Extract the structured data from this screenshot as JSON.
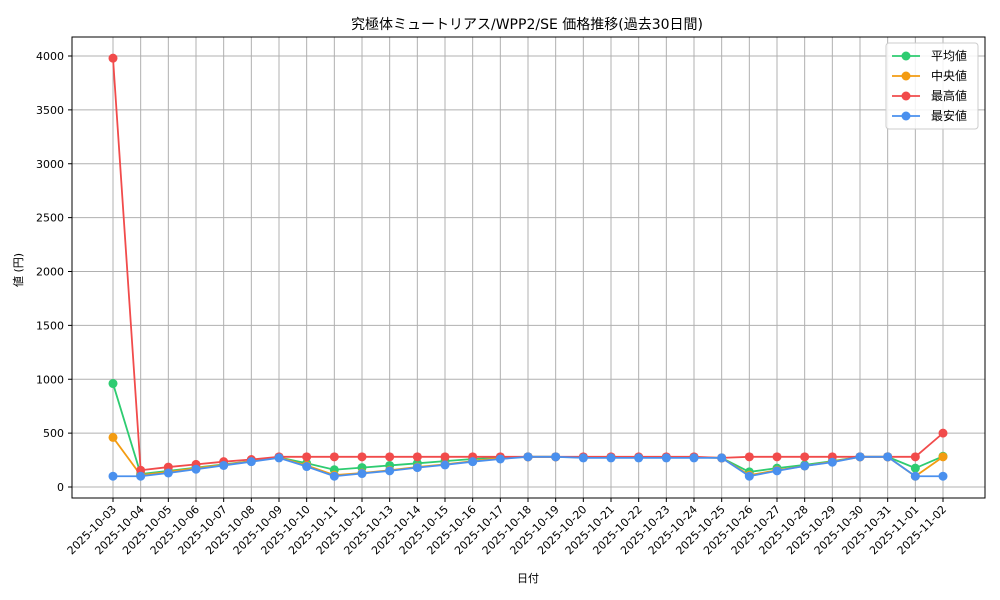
{
  "chart_data": {
    "type": "line",
    "title": "究極体ミュートリアス/WPP2/SE 価格推移(過去30日間)",
    "xlabel": "日付",
    "ylabel": "値 (円)",
    "ylim": [
      -100,
      4180
    ],
    "yticks": [
      0,
      500,
      1000,
      1500,
      2000,
      2500,
      3000,
      3500,
      4000
    ],
    "grid": true,
    "legend_position": "upper right",
    "categories": [
      "2025-10-03",
      "2025-10-04",
      "2025-10-05",
      "2025-10-06",
      "2025-10-07",
      "2025-10-08",
      "2025-10-09",
      "2025-10-10",
      "2025-10-11",
      "2025-10-12",
      "2025-10-13",
      "2025-10-14",
      "2025-10-15",
      "2025-10-16",
      "2025-10-17",
      "2025-10-18",
      "2025-10-19",
      "2025-10-20",
      "2025-10-21",
      "2025-10-22",
      "2025-10-23",
      "2025-10-24",
      "2025-10-25",
      "2025-10-26",
      "2025-10-27",
      "2025-10-28",
      "2025-10-29",
      "2025-10-30",
      "2025-10-31",
      "2025-11-01",
      "2025-11-02"
    ],
    "series": [
      {
        "name": "平均値",
        "color": "#2ecc71",
        "values": [
          960,
          120,
          150,
          180,
          210,
          240,
          275,
          220,
          160,
          180,
          200,
          220,
          240,
          260,
          275,
          280,
          280,
          275,
          275,
          275,
          275,
          275,
          270,
          140,
          175,
          205,
          240,
          280,
          280,
          175,
          285
        ]
      },
      {
        "name": "中央値",
        "color": "#f39c12",
        "values": [
          460,
          110,
          140,
          175,
          205,
          240,
          275,
          200,
          110,
          130,
          155,
          185,
          210,
          240,
          270,
          280,
          280,
          275,
          275,
          275,
          275,
          275,
          270,
          110,
          155,
          195,
          235,
          280,
          280,
          100,
          280
        ]
      },
      {
        "name": "最高値",
        "color": "#f14b4b",
        "values": [
          3980,
          155,
          185,
          210,
          235,
          255,
          280,
          280,
          280,
          280,
          280,
          280,
          280,
          280,
          280,
          280,
          280,
          280,
          280,
          280,
          280,
          280,
          270,
          280,
          280,
          280,
          280,
          280,
          280,
          280,
          500
        ]
      },
      {
        "name": "最安値",
        "color": "#4a90ee",
        "values": [
          100,
          100,
          130,
          165,
          200,
          235,
          270,
          190,
          100,
          125,
          150,
          180,
          205,
          235,
          260,
          280,
          280,
          270,
          270,
          270,
          270,
          270,
          270,
          100,
          150,
          195,
          230,
          280,
          280,
          100,
          100
        ]
      }
    ]
  }
}
